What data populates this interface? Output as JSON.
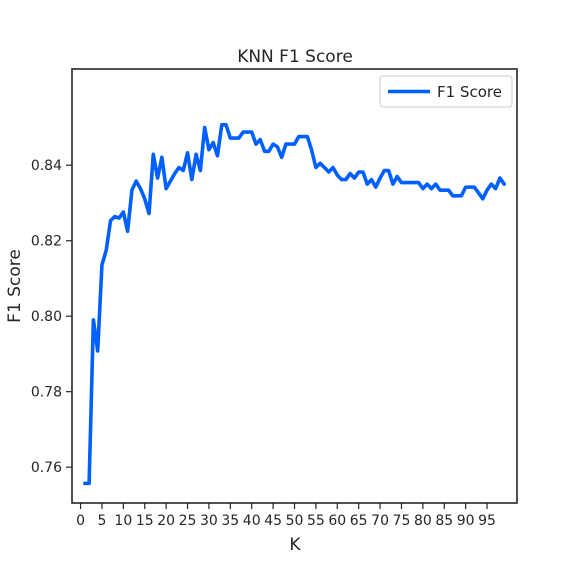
{
  "chart_data": {
    "type": "line",
    "title": "KNN F1 Score",
    "xlabel": "K",
    "ylabel": "F1 Score",
    "xlim": [
      -2,
      102
    ],
    "ylim": [
      0.7505,
      0.8655
    ],
    "xticks": [
      0,
      5,
      10,
      15,
      20,
      25,
      30,
      35,
      40,
      45,
      50,
      55,
      60,
      65,
      70,
      75,
      80,
      85,
      90,
      95
    ],
    "yticks": [
      0.76,
      0.78,
      0.8,
      0.82,
      0.84
    ],
    "yticks_labels": [
      "0.76",
      "0.78",
      "0.80",
      "0.82",
      "0.84"
    ],
    "legend_position": "top-right",
    "series": [
      {
        "name": "F1 Score",
        "color": "#0060ff",
        "x": [
          1,
          2,
          3,
          4,
          5,
          6,
          7,
          8,
          9,
          10,
          11,
          12,
          13,
          14,
          15,
          16,
          17,
          18,
          19,
          20,
          21,
          22,
          23,
          24,
          25,
          26,
          27,
          28,
          29,
          30,
          31,
          32,
          33,
          34,
          35,
          36,
          37,
          38,
          39,
          40,
          41,
          42,
          43,
          44,
          45,
          46,
          47,
          48,
          49,
          50,
          51,
          52,
          53,
          54,
          55,
          56,
          57,
          58,
          59,
          60,
          61,
          62,
          63,
          64,
          65,
          66,
          67,
          68,
          69,
          70,
          71,
          72,
          73,
          74,
          75,
          76,
          77,
          78,
          79,
          80,
          81,
          82,
          83,
          84,
          85,
          86,
          87,
          88,
          89,
          90,
          91,
          92,
          93,
          94,
          95,
          96,
          97,
          98,
          99
        ],
        "values": [
          0.7557,
          0.7557,
          0.799,
          0.7908,
          0.8136,
          0.8175,
          0.8253,
          0.8264,
          0.826,
          0.8276,
          0.8225,
          0.8334,
          0.8358,
          0.8338,
          0.8311,
          0.8272,
          0.8429,
          0.8366,
          0.8421,
          0.8338,
          0.8358,
          0.8378,
          0.8394,
          0.8386,
          0.8433,
          0.8362,
          0.8429,
          0.8386,
          0.85,
          0.8441,
          0.846,
          0.8425,
          0.8507,
          0.8507,
          0.8472,
          0.8472,
          0.8472,
          0.8488,
          0.8488,
          0.8488,
          0.8456,
          0.8468,
          0.8437,
          0.8437,
          0.8456,
          0.8449,
          0.8421,
          0.8456,
          0.8456,
          0.8456,
          0.8476,
          0.8476,
          0.8476,
          0.844,
          0.8394,
          0.8405,
          0.8394,
          0.8382,
          0.8394,
          0.8374,
          0.8362,
          0.8362,
          0.8378,
          0.8366,
          0.8382,
          0.8382,
          0.835,
          0.8362,
          0.8342,
          0.8366,
          0.8386,
          0.8386,
          0.835,
          0.837,
          0.8354,
          0.8354,
          0.8354,
          0.8354,
          0.8354,
          0.8338,
          0.835,
          0.8338,
          0.835,
          0.8334,
          0.8334,
          0.8334,
          0.8319,
          0.8319,
          0.8319,
          0.8342,
          0.8342,
          0.8342,
          0.8327,
          0.8311,
          0.8334,
          0.835,
          0.8338,
          0.8366,
          0.835
        ]
      }
    ]
  }
}
